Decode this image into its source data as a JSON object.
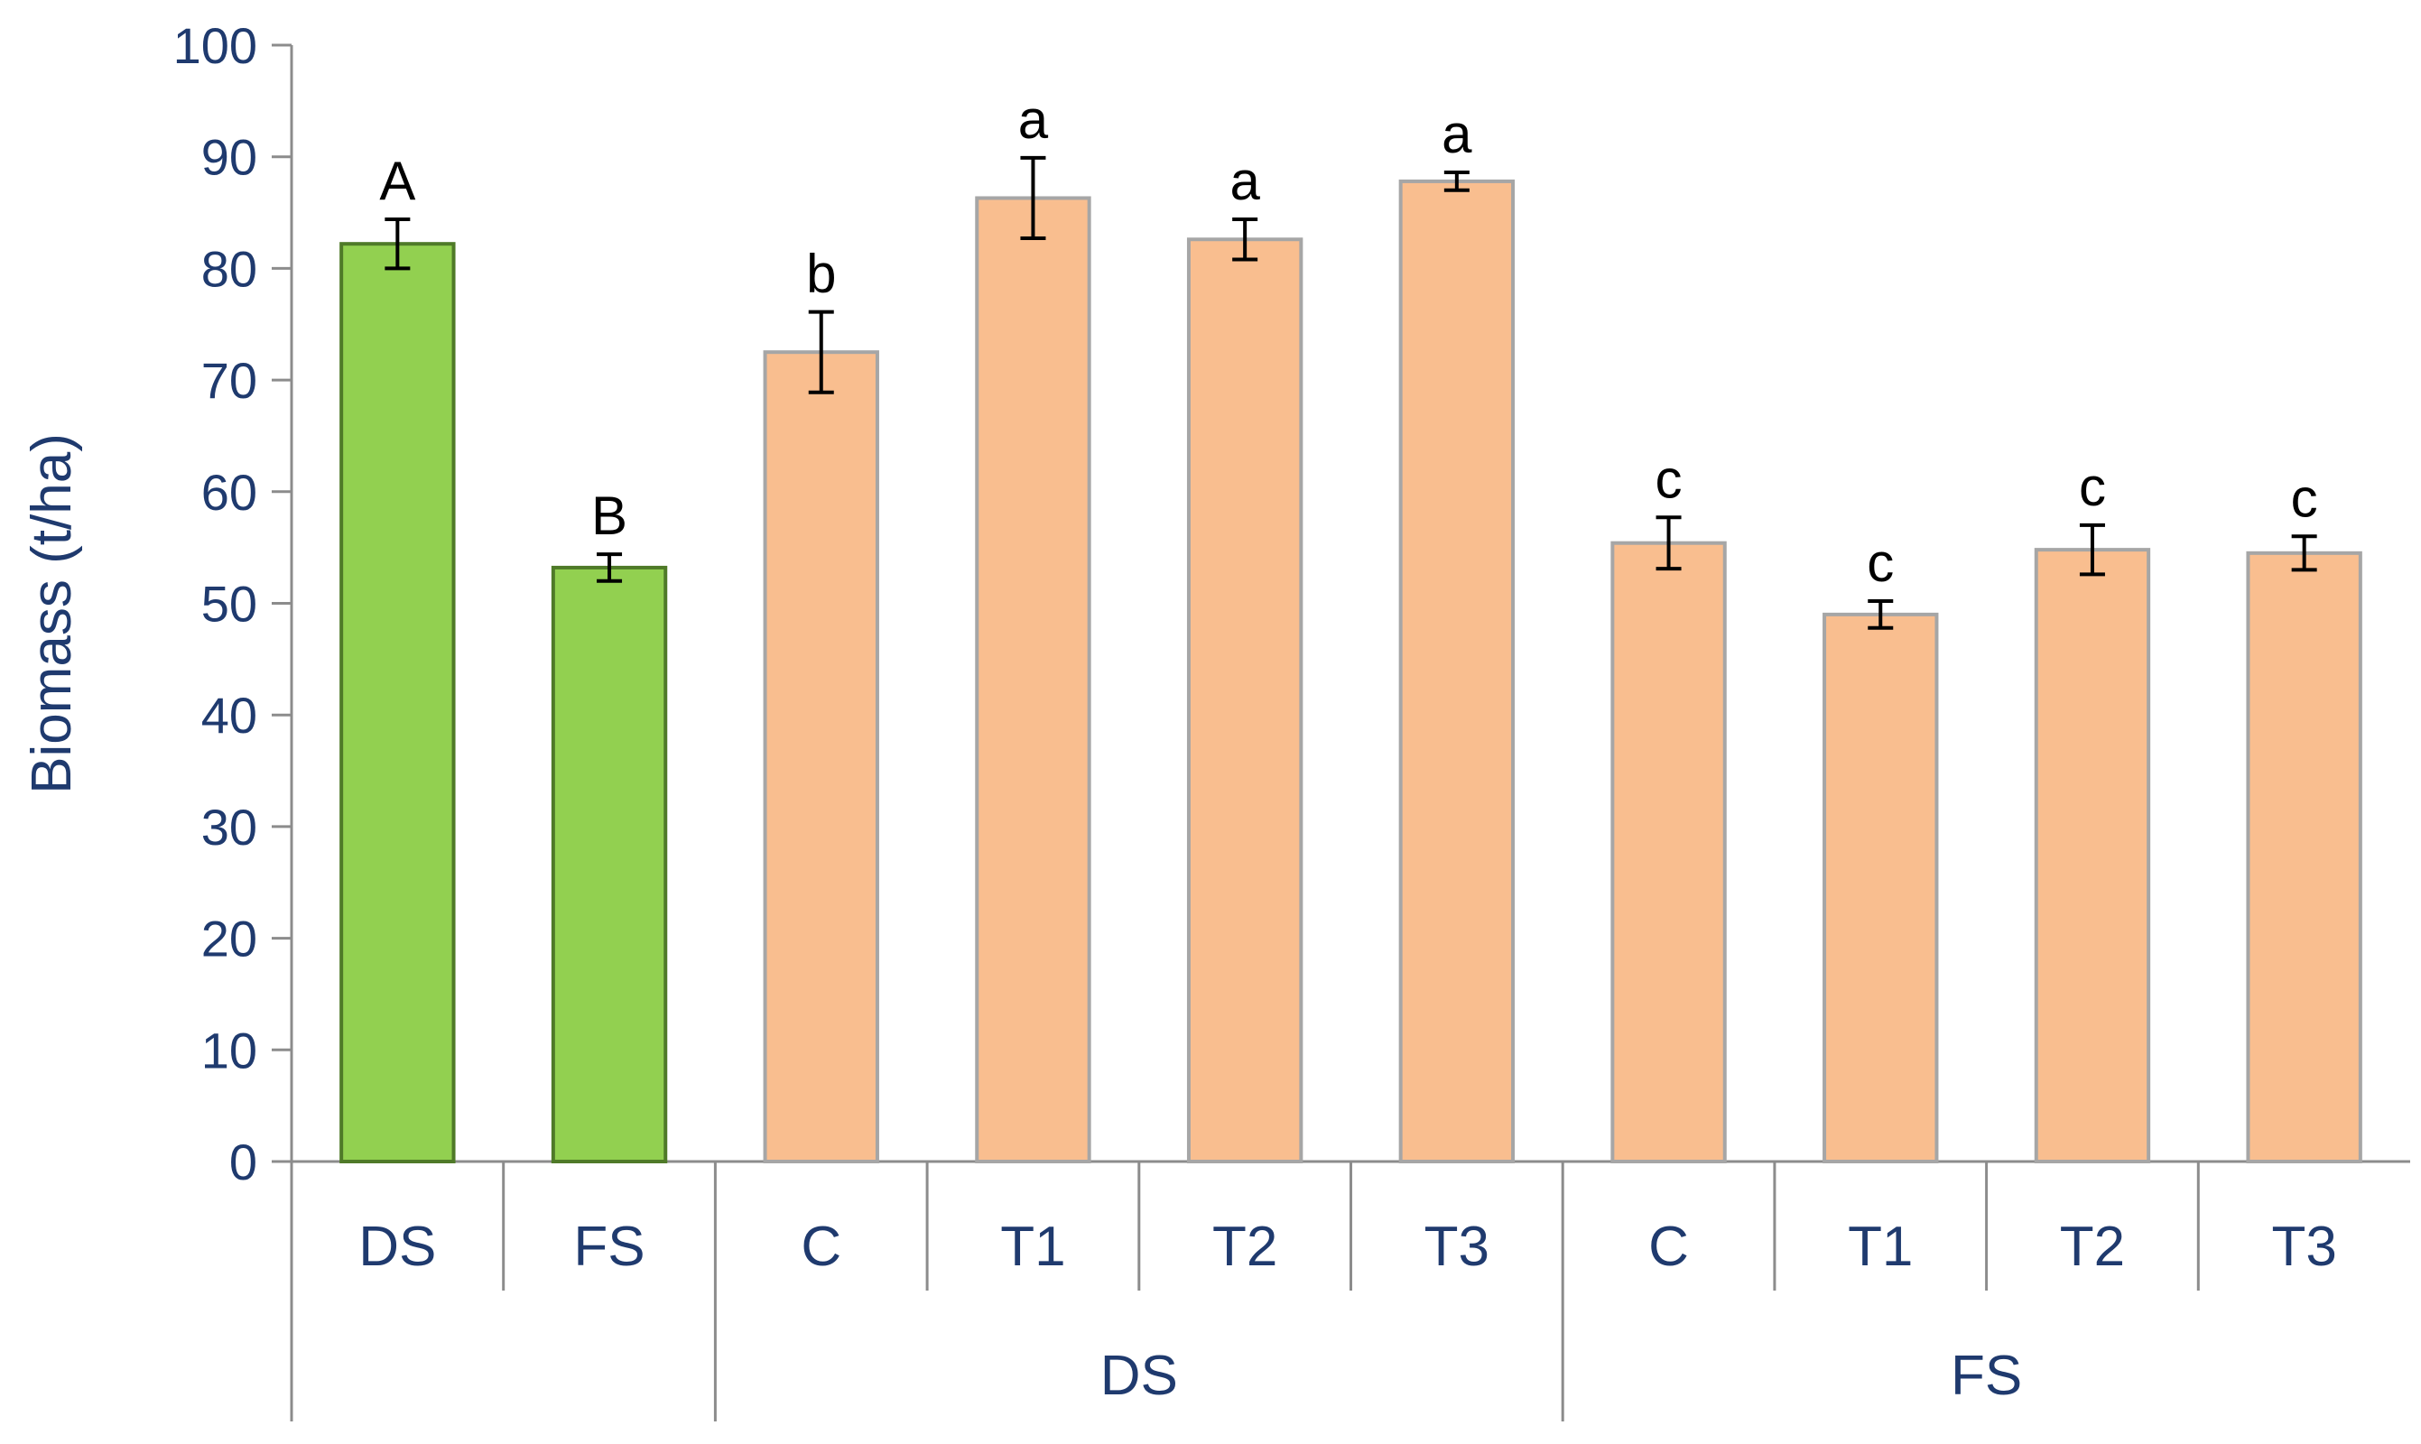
{
  "chart_data": {
    "type": "bar",
    "ylabel": "Biomass (t/ha)",
    "ylim": [
      0,
      100
    ],
    "yticks": [
      0,
      10,
      20,
      30,
      40,
      50,
      60,
      70,
      80,
      90,
      100
    ],
    "grid": false,
    "colors": {
      "green": "#92d050",
      "green_edge": "#4f7a28",
      "orange": "#f9be8f",
      "orange_edge": "#a6a6a6",
      "axis": "#8c8c8c",
      "text": "#1f3a6e"
    },
    "groups": [
      {
        "label": "",
        "categories": [
          "DS",
          "FS"
        ]
      },
      {
        "label": "DS",
        "categories": [
          "C",
          "T1",
          "T2",
          "T3"
        ]
      },
      {
        "label": "FS",
        "categories": [
          "C",
          "T1",
          "T2",
          "T3"
        ]
      }
    ],
    "bars": [
      {
        "category": "DS",
        "value": 82.2,
        "error": 2.2,
        "letter": "A",
        "color": "green"
      },
      {
        "category": "FS",
        "value": 53.2,
        "error": 1.2,
        "letter": "B",
        "color": "green"
      },
      {
        "category": "C",
        "value": 72.5,
        "error": 3.6,
        "letter": "b",
        "color": "orange"
      },
      {
        "category": "T1",
        "value": 86.3,
        "error": 3.6,
        "letter": "a",
        "color": "orange"
      },
      {
        "category": "T2",
        "value": 82.6,
        "error": 1.8,
        "letter": "a",
        "color": "orange"
      },
      {
        "category": "T3",
        "value": 87.8,
        "error": 0.8,
        "letter": "a",
        "color": "orange"
      },
      {
        "category": "C",
        "value": 55.4,
        "error": 2.3,
        "letter": "c",
        "color": "orange"
      },
      {
        "category": "T1",
        "value": 49.0,
        "error": 1.2,
        "letter": "c",
        "color": "orange"
      },
      {
        "category": "T2",
        "value": 54.8,
        "error": 2.2,
        "letter": "c",
        "color": "orange"
      },
      {
        "category": "T3",
        "value": 54.5,
        "error": 1.5,
        "letter": "c",
        "color": "orange"
      }
    ]
  }
}
